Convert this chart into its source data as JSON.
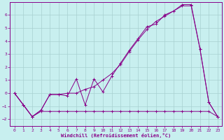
{
  "xlabel": "Windchill (Refroidissement éolien,°C)",
  "bg_color": "#c8efef",
  "grid_color": "#a8d0d0",
  "line_color": "#880088",
  "ylim": [
    -2.5,
    7.0
  ],
  "xlim": [
    -0.5,
    23.5
  ],
  "yticks": [
    -2,
    -1,
    0,
    1,
    2,
    3,
    4,
    5,
    6
  ],
  "xticks": [
    0,
    1,
    2,
    3,
    4,
    5,
    6,
    7,
    8,
    9,
    10,
    11,
    12,
    13,
    14,
    15,
    16,
    17,
    18,
    19,
    20,
    21,
    22,
    23
  ],
  "series1_x": [
    0,
    1,
    2,
    3,
    4,
    5,
    6,
    7,
    8,
    9,
    10,
    11,
    12,
    13,
    14,
    15,
    16,
    17,
    18,
    19,
    20,
    21,
    22,
    23
  ],
  "series1_y": [
    0.0,
    -0.9,
    -1.8,
    -1.4,
    -1.4,
    -1.4,
    -1.4,
    -1.4,
    -1.4,
    -1.4,
    -1.4,
    -1.4,
    -1.4,
    -1.4,
    -1.4,
    -1.4,
    -1.4,
    -1.4,
    -1.4,
    -1.4,
    -1.4,
    -1.4,
    -1.4,
    -1.8
  ],
  "series2_x": [
    0,
    1,
    2,
    3,
    4,
    5,
    6,
    7,
    8,
    9,
    10,
    11,
    12,
    13,
    14,
    15,
    16,
    17,
    18,
    19,
    20,
    21,
    22,
    23
  ],
  "series2_y": [
    0.0,
    -0.9,
    -1.8,
    -1.3,
    -0.1,
    -0.1,
    -0.2,
    1.1,
    -0.9,
    1.1,
    0.1,
    1.3,
    2.3,
    3.3,
    4.2,
    5.1,
    5.3,
    6.0,
    6.3,
    6.8,
    6.8,
    3.4,
    -0.7,
    -1.8
  ],
  "series3_x": [
    0,
    1,
    2,
    3,
    4,
    5,
    6,
    7,
    8,
    9,
    10,
    11,
    12,
    13,
    14,
    15,
    16,
    17,
    18,
    19,
    20,
    21,
    22,
    23
  ],
  "series3_y": [
    0.0,
    -0.9,
    -1.8,
    -1.3,
    -0.1,
    -0.1,
    0.0,
    0.0,
    0.3,
    0.5,
    1.0,
    1.5,
    2.2,
    3.2,
    4.1,
    4.9,
    5.5,
    5.9,
    6.3,
    6.7,
    6.7,
    3.4,
    -0.7,
    -1.8
  ]
}
